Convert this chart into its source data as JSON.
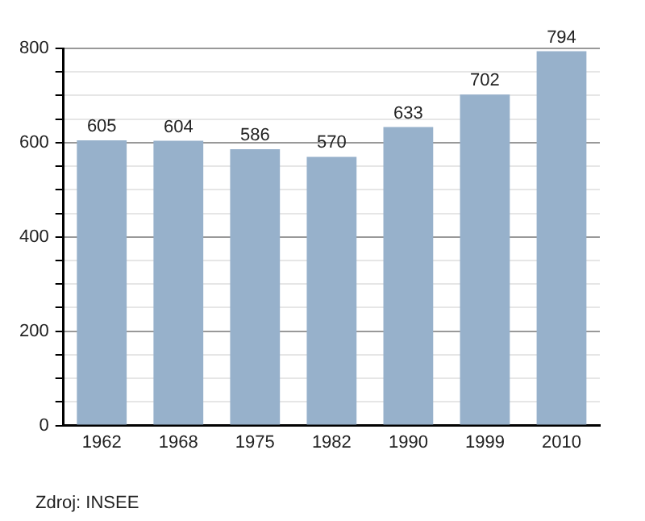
{
  "chart_data": {
    "type": "bar",
    "categories": [
      "1962",
      "1968",
      "1975",
      "1982",
      "1990",
      "1999",
      "2010"
    ],
    "values": [
      605,
      604,
      586,
      570,
      633,
      702,
      794
    ],
    "color": "#97b1cb",
    "ylim": [
      0,
      800
    ],
    "yticks": [
      0,
      {
        "value": 50,
        "label": null
      },
      {
        "value": 100,
        "label": null
      },
      {
        "value": 150,
        "label": null
      },
      200,
      {
        "value": 250,
        "label": null
      },
      {
        "value": 300,
        "label": null
      },
      {
        "value": 350,
        "label": null
      },
      400,
      {
        "value": 450,
        "label": null
      },
      {
        "value": 500,
        "label": null
      },
      {
        "value": 550,
        "label": null
      },
      600,
      {
        "value": 650,
        "label": null
      },
      {
        "value": 700,
        "label": null
      },
      {
        "value": 750,
        "label": null
      },
      800
    ],
    "grid": "y",
    "data_labels": true,
    "annotations": [
      "Zdroj: INSEE"
    ]
  }
}
